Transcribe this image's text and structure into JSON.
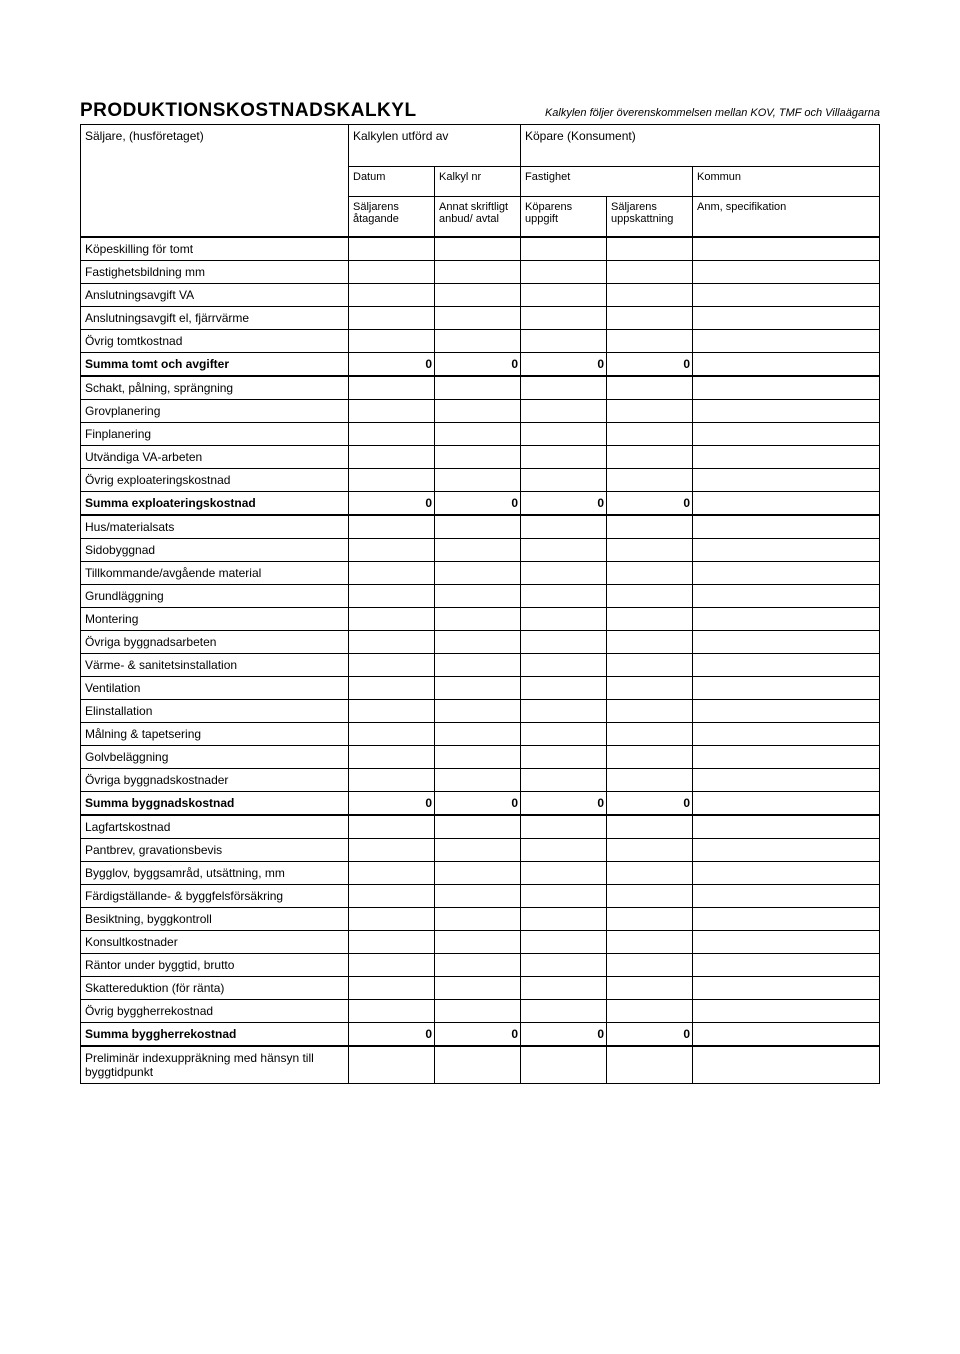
{
  "title": "PRODUKTIONSKOSTNADSKALKYL",
  "subtitle": "Kalkylen följer överenskommelsen mellan KOV, TMF och Villaägarna",
  "header": {
    "seller": "Säljare, (husföretaget)",
    "calc_by": "Kalkylen utförd av",
    "buyer": "Köpare (Konsument)",
    "date": "Datum",
    "calc_no": "Kalkyl nr",
    "property": "Fastighet",
    "municipality": "Kommun",
    "col1": "Säljarens åtagande",
    "col2": "Annat skriftligt anbud/ avtal",
    "col3": "Köparens uppgift",
    "col4": "Säljarens uppskattning",
    "col5": "Anm, specifikation"
  },
  "sections": [
    {
      "rows": [
        "Köpeskilling för tomt",
        "Fastighetsbildning mm",
        "Anslutningsavgift VA",
        "Anslutningsavgift el, fjärrvärme",
        "Övrig tomtkostnad"
      ],
      "sum_label": "Summa tomt och avgifter",
      "sum_vals": [
        "0",
        "0",
        "0",
        "0",
        ""
      ]
    },
    {
      "rows": [
        "Schakt, pålning, sprängning",
        "Grovplanering",
        "Finplanering",
        "Utvändiga VA-arbeten",
        "Övrig exploateringskostnad"
      ],
      "sum_label": "Summa exploateringskostnad",
      "sum_vals": [
        "0",
        "0",
        "0",
        "0",
        ""
      ]
    },
    {
      "rows": [
        "Hus/materialsats",
        "Sidobyggnad",
        "Tillkommande/avgående material",
        "Grundläggning",
        "Montering",
        "Övriga byggnadsarbeten",
        "Värme- & sanitetsinstallation",
        "Ventilation",
        "Elinstallation",
        "Målning & tapetsering",
        "Golvbeläggning",
        "Övriga byggnadskostnader"
      ],
      "sum_label": "Summa byggnadskostnad",
      "sum_vals": [
        "0",
        "0",
        "0",
        "0",
        ""
      ]
    },
    {
      "rows": [
        "Lagfartskostnad",
        "Pantbrev, gravationsbevis",
        "Bygglov, byggsamråd, utsättning, mm",
        "Färdigställande- & byggfelsförsäkring",
        "Besiktning, byggkontroll",
        "Konsultkostnader",
        "Räntor under byggtid, brutto",
        "Skattereduktion (för ränta)",
        "Övrig byggherrekostnad"
      ],
      "sum_label": "Summa byggherrekostnad",
      "sum_vals": [
        "0",
        "0",
        "0",
        "0",
        ""
      ]
    }
  ],
  "final_row": "Preliminär indexuppräkning med hänsyn till byggtidpunkt"
}
